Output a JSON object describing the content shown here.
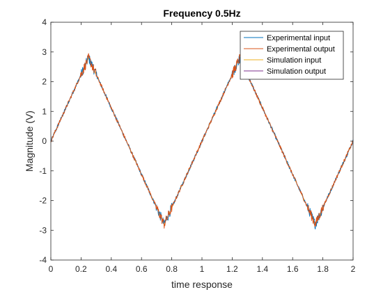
{
  "chart_data": {
    "type": "line",
    "title": "Frequency 0.5Hz",
    "xlabel": "time response",
    "ylabel": "Magnitude (V)",
    "xlim": [
      0,
      2
    ],
    "ylim": [
      -4,
      4
    ],
    "xticks": [
      0,
      0.2,
      0.4,
      0.6,
      0.8,
      1,
      1.2,
      1.4,
      1.6,
      1.8,
      2
    ],
    "xtick_labels": [
      "0",
      "0.2",
      "0.4",
      "0.6",
      "0.8",
      "1",
      "1.2",
      "1.4",
      "1.6",
      "1.8",
      "2"
    ],
    "yticks": [
      -4,
      -3,
      -2,
      -1,
      0,
      1,
      2,
      3,
      4
    ],
    "ytick_labels": [
      "-4",
      "-3",
      "-2",
      "-1",
      "0",
      "1",
      "2",
      "3",
      "4"
    ],
    "grid": false,
    "legend_position": "top-right",
    "series": [
      {
        "name": "Experimental input",
        "color": "#0072BD",
        "noisy": true,
        "x": [
          0,
          0.25,
          0.75,
          1.25,
          1.75,
          2
        ],
        "y": [
          0,
          2.8,
          -2.8,
          2.8,
          -2.8,
          0
        ]
      },
      {
        "name": "Experimental output",
        "color": "#D95319",
        "noisy": true,
        "x": [
          0,
          0.25,
          0.75,
          1.25,
          1.75,
          2
        ],
        "y": [
          0,
          2.8,
          -2.8,
          2.8,
          -2.8,
          0
        ]
      },
      {
        "name": "Simulation input",
        "color": "#EDB120",
        "noisy": false,
        "x": [
          0,
          0.25,
          0.75,
          1.25,
          1.75,
          2
        ],
        "y": [
          0,
          2.8,
          -2.8,
          2.8,
          -2.8,
          0
        ]
      },
      {
        "name": "Simulation output",
        "color": "#7E2F8E",
        "noisy": false,
        "x": [
          0,
          0.25,
          0.75,
          1.25,
          1.75,
          2
        ],
        "y": [
          0,
          2.8,
          -2.8,
          2.8,
          -2.8,
          0
        ]
      }
    ]
  }
}
